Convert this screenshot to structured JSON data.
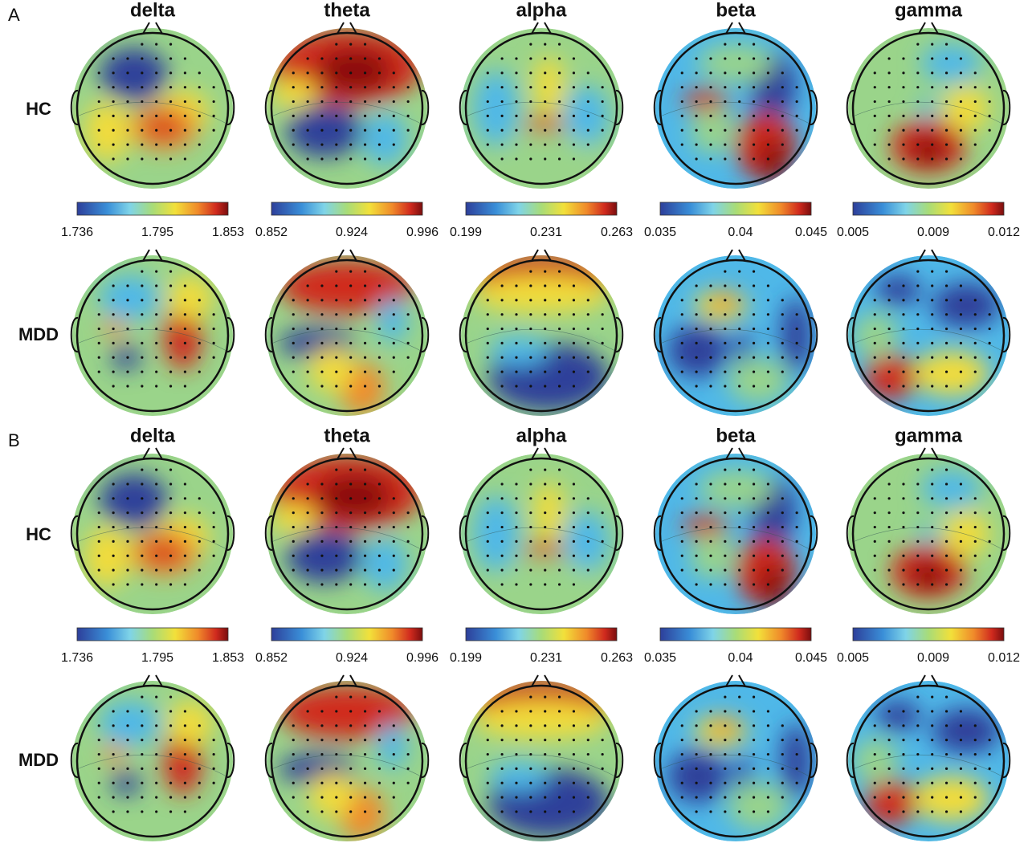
{
  "panels": [
    {
      "label": "A",
      "bands": [
        "delta",
        "theta",
        "alpha",
        "beta",
        "gamma"
      ],
      "groups": [
        "HC",
        "MDD"
      ],
      "colorbars": [
        [
          "1.736",
          "1.795",
          "1.853"
        ],
        [
          "0.852",
          "0.924",
          "0.996"
        ],
        [
          "0.199",
          "0.231",
          "0.263"
        ],
        [
          "0.035",
          "0.04",
          "0.045"
        ],
        [
          "0.005",
          "0.009",
          "0.012"
        ]
      ]
    },
    {
      "label": "B",
      "bands": [
        "delta",
        "theta",
        "alpha",
        "beta",
        "gamma"
      ],
      "groups": [
        "HC",
        "MDD"
      ],
      "colorbars": [
        [
          "1.736",
          "1.795",
          "1.853"
        ],
        [
          "0.852",
          "0.924",
          "0.996"
        ],
        [
          "0.199",
          "0.231",
          "0.263"
        ],
        [
          "0.035",
          "0.04",
          "0.045"
        ],
        [
          "0.005",
          "0.009",
          "0.012"
        ]
      ]
    }
  ]
}
